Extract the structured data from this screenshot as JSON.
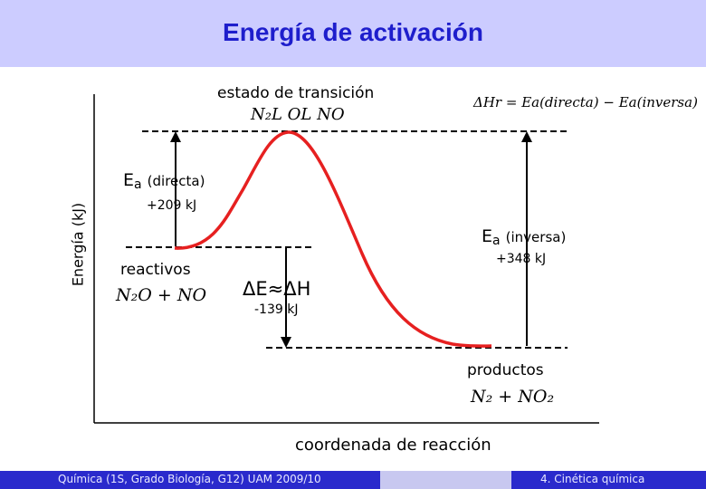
{
  "slide": {
    "title": "Energía de activación",
    "footer_left": "Química (1S, Grado Biología, G12) UAM 2009/10",
    "footer_right": "4. Cinética química"
  },
  "diagram": {
    "y_axis_label": "Energía (kJ)",
    "x_axis_label": "coordenada de reacción",
    "transition_state": "estado de transición",
    "transition_formula": "N₂L OL NO",
    "enthalpy_relation": "ΔHr = Ea(directa) − Ea(inversa)",
    "ea_forward_symbol": "E",
    "ea_forward_sub": "a",
    "ea_forward_label": "(directa)",
    "ea_forward_value": "+209 kJ",
    "ea_reverse_symbol": "E",
    "ea_reverse_sub": "a",
    "ea_reverse_label": "(inversa)",
    "ea_reverse_value": "+348 kJ",
    "reactants_label": "reactivos",
    "reactants_formula": "N₂O + NO",
    "delta_label": "ΔE≈ΔH",
    "delta_value": "-139 kJ",
    "products_label": "productos",
    "products_formula": "N₂ + NO₂",
    "colors": {
      "curve": "#e62020",
      "title": "#1e1ecc",
      "band": "#ccccff",
      "footer": "#2a2acc"
    }
  }
}
